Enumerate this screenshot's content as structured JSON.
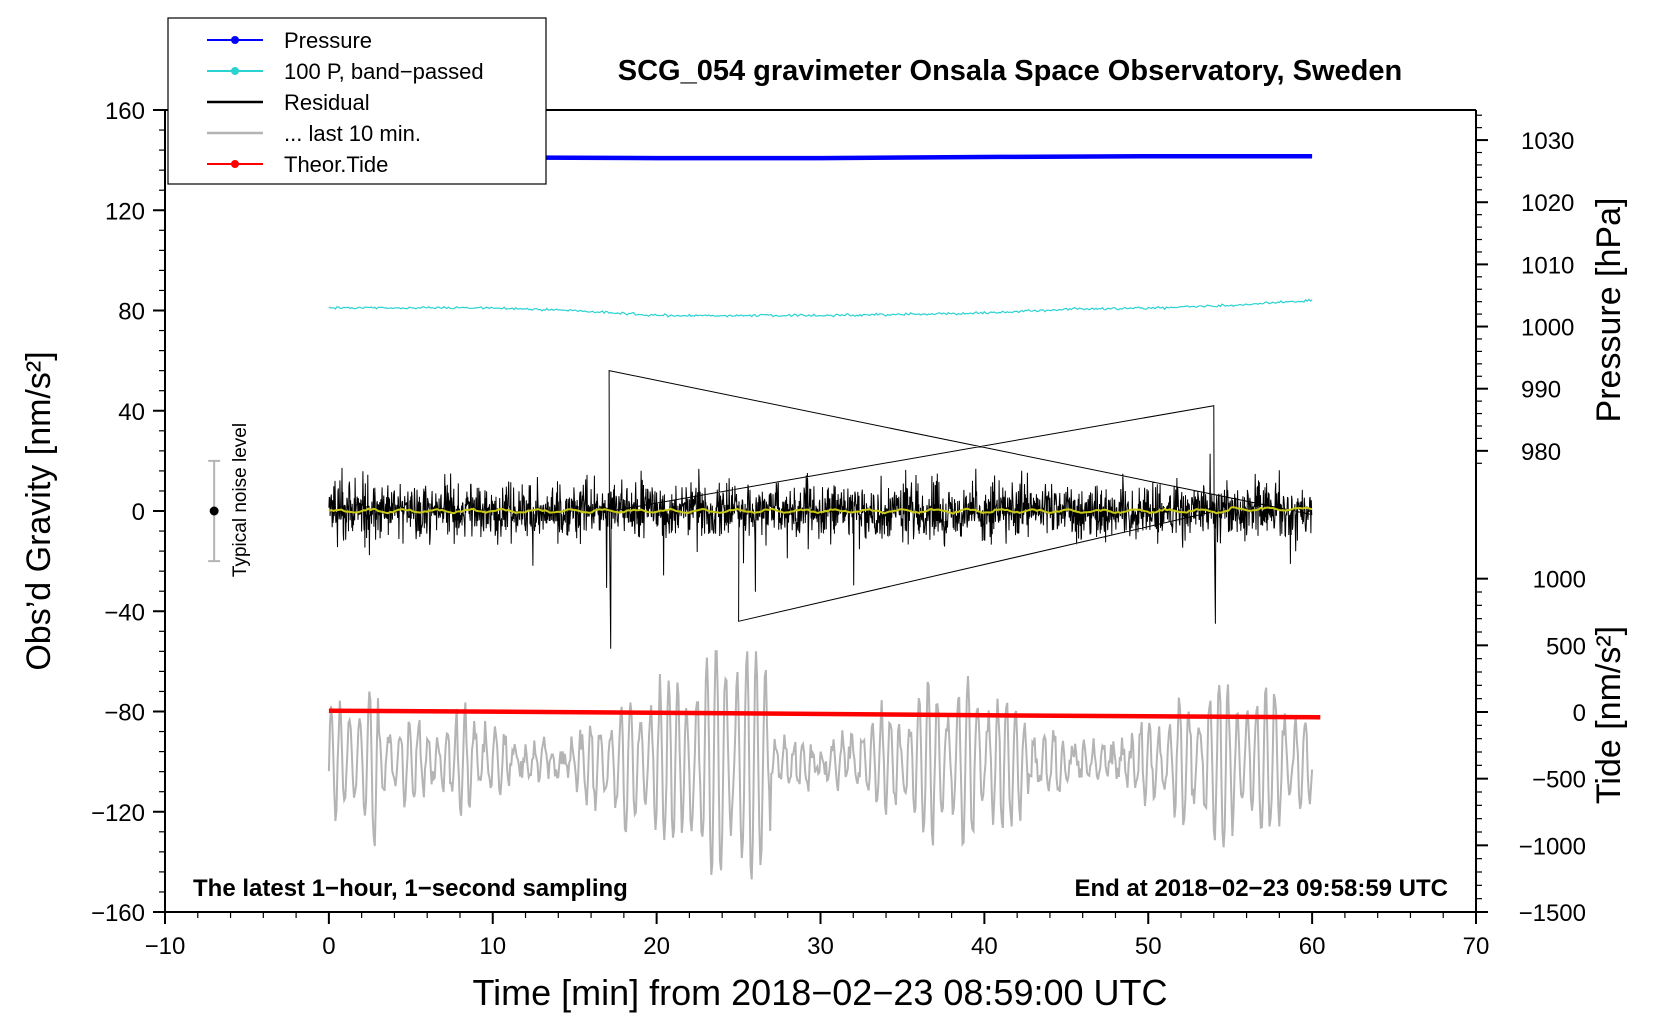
{
  "chart_data": {
    "type": "line",
    "title": "SCG_054 gravimeter Onsala Space Observatory, Sweden",
    "xlabel": "Time [min] from 2018−02−23 08:59:00 UTC",
    "ylabel_left": "Obs’d Gravity [nm/s²]",
    "ylabel_right_pressure": "Pressure [hPa]",
    "ylabel_right_tide": "Tide [nm/s²]",
    "xlim": [
      -10,
      70
    ],
    "ylim_left": [
      -160,
      160
    ],
    "x_ticks": [
      "−10",
      "0",
      "10",
      "20",
      "30",
      "40",
      "50",
      "60",
      "70"
    ],
    "x_tick_values": [
      -10,
      0,
      10,
      20,
      30,
      40,
      50,
      60,
      70
    ],
    "y_left_ticks": [
      "160",
      "120",
      "80",
      "40",
      "0",
      "−40",
      "−80",
      "−120",
      "−160"
    ],
    "y_left_tick_values": [
      160,
      120,
      80,
      40,
      0,
      -40,
      -80,
      -120,
      -160
    ],
    "pressure_axis": {
      "ticks": [
        "1030",
        "1020",
        "1010",
        "1000",
        "990",
        "980"
      ],
      "tick_values": [
        1030,
        1020,
        1010,
        1000,
        990,
        980
      ],
      "gravity_equivalent": [
        [
          1030,
          148
        ],
        [
          980,
          24
        ]
      ]
    },
    "tide_axis": {
      "ticks": [
        "1000",
        "500",
        "0",
        "−500",
        "−1000",
        "−1500"
      ],
      "tick_values": [
        1000,
        500,
        0,
        -500,
        -1000,
        -1500
      ],
      "gravity_equivalent": [
        [
          1000,
          -27
        ],
        [
          -1500,
          -160
        ]
      ]
    },
    "series": [
      {
        "name": "Pressure",
        "axis": "pressure",
        "color": "#0000ff",
        "x": [
          0,
          10,
          20,
          30,
          41,
          50,
          60
        ],
        "values": [
          1027.2,
          1027.2,
          1027.1,
          1027.1,
          1027.3,
          1027.4,
          1027.4
        ]
      },
      {
        "name": "100 P, band−passed",
        "axis": "left",
        "color": "#2ad2d2",
        "x": [
          0,
          5,
          10,
          15,
          20,
          25,
          30,
          35,
          40,
          45,
          50,
          55,
          60
        ],
        "values": [
          81,
          81,
          81,
          80,
          78,
          78,
          78,
          78.5,
          79,
          80.5,
          81,
          82,
          84
        ]
      },
      {
        "name": "Residual",
        "axis": "left",
        "color": "#000000",
        "x_range": [
          0,
          60
        ],
        "amplitude_typical": 25,
        "extremes": [
          [
            17.1,
            56
          ],
          [
            17.2,
            -55
          ],
          [
            54.0,
            42
          ],
          [
            54.1,
            -45
          ],
          [
            25.0,
            -44
          ]
        ]
      },
      {
        "name": "... last 10 min.",
        "axis": "left",
        "color": "#b4b4b4",
        "x_range": [
          0,
          60
        ],
        "description_values": [
          -80,
          -145
        ]
      },
      {
        "name": "Theor.Tide",
        "axis": "tide",
        "color": "#ff0000",
        "x": [
          0,
          20,
          40,
          60.5
        ],
        "values": [
          10,
          -5,
          -25,
          -40
        ]
      }
    ],
    "smoothed_residual_color": "#c8c814",
    "noise_bar": {
      "label": "Typical noise level",
      "x": -7,
      "center": 0,
      "half_width": 20
    },
    "legend_position": "top-left",
    "annotations": {
      "left": "The latest 1−hour, 1−second sampling",
      "right": "End at 2018−02−23 09:58:59 UTC"
    }
  }
}
